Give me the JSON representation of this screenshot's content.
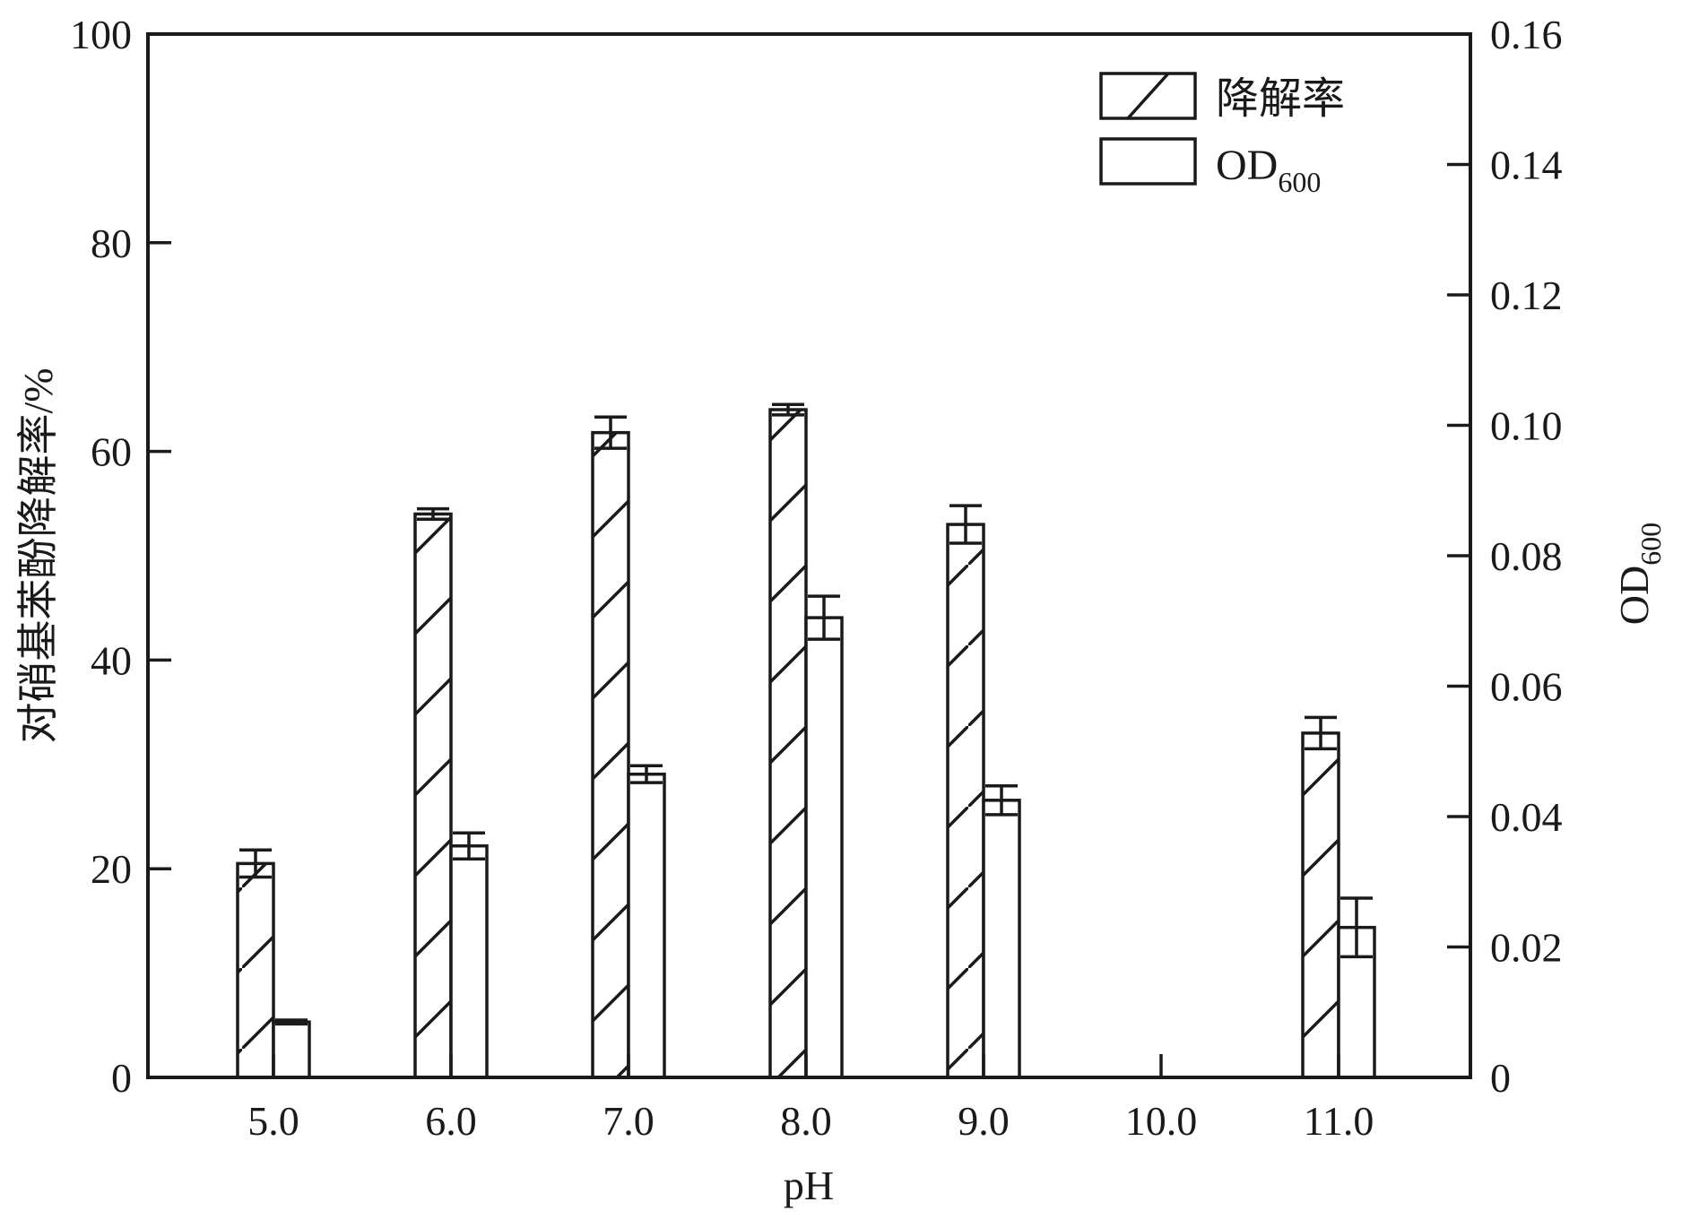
{
  "chart_data": {
    "type": "bar",
    "title": "",
    "xlabel": "pH",
    "ylabel_left": "对硝基苯酚降解率/%",
    "ylabel_right_main": "OD",
    "ylabel_right_sub": "600",
    "categories": [
      "5.0",
      "6.0",
      "7.0",
      "8.0",
      "9.0",
      "10.0",
      "11.0"
    ],
    "ylim_left": [
      0,
      100
    ],
    "yticks_left": [
      "0",
      "20",
      "40",
      "60",
      "80",
      "100"
    ],
    "ylim_right": [
      0,
      0.16
    ],
    "yticks_right": [
      "0",
      "0.02",
      "0.04",
      "0.06",
      "0.08",
      "0.10",
      "0.12",
      "0.14",
      "0.16"
    ],
    "grid": false,
    "legend_position": "top-right",
    "series": [
      {
        "name": "降解率",
        "axis": "left",
        "pattern": "hatched",
        "values": [
          20.5,
          54.0,
          61.8,
          64.0,
          53.0,
          0,
          33.0
        ],
        "errors": [
          1.3,
          0.5,
          1.5,
          0.5,
          1.8,
          0,
          1.5
        ]
      },
      {
        "name_main": "OD",
        "name_sub": "600",
        "axis": "right",
        "pattern": "open",
        "values": [
          0.0085,
          0.0355,
          0.0465,
          0.0705,
          0.0425,
          0,
          0.023
        ],
        "errors": [
          0.0003,
          0.002,
          0.0013,
          0.0033,
          0.0022,
          0,
          0.0045
        ]
      }
    ],
    "legend": {
      "hatched_label": "降解率",
      "open_label_main": "OD",
      "open_label_sub": "600"
    }
  }
}
